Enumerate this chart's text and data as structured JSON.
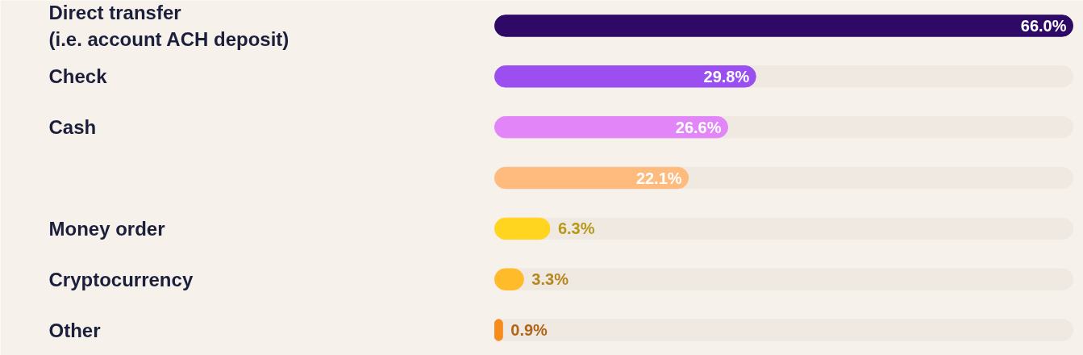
{
  "chart_data": {
    "type": "bar",
    "orientation": "horizontal",
    "categories": [
      "Direct transfer\n(i.e. account ACH deposit)",
      "Check",
      "Cash",
      null,
      "Money order",
      "Cryptocurrency",
      "Other"
    ],
    "values": [
      66.0,
      29.8,
      26.6,
      22.1,
      6.3,
      3.3,
      0.9
    ],
    "colors": [
      "#2e0a66",
      "#9b4ff0",
      "#e185f9",
      "#ffbb7d",
      "#ffd51f",
      "#ffbb2a",
      "#f78c1e"
    ],
    "value_labels": [
      "66.0%",
      "29.8%",
      "26.6%",
      "22.1%",
      "6.3%",
      "3.3%",
      "0.9%"
    ],
    "grid": false
  }
}
